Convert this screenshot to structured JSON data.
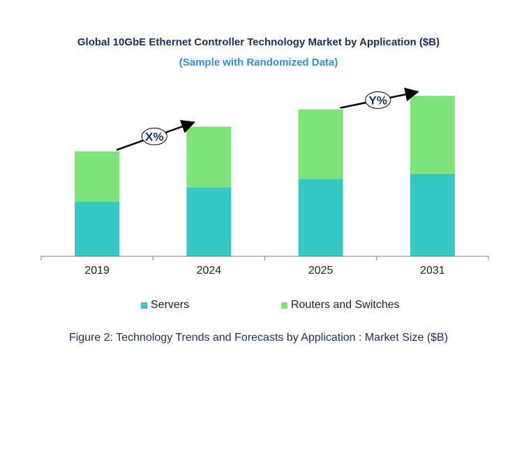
{
  "title": "Global 10GbE Ethernet Controller Technology Market by Application ($B)",
  "subtitle": "(Sample with Randomized Data)",
  "caption": "Figure 2: Technology  Trends  and Forecasts by Application : Market Size ($B)",
  "colors": {
    "servers": "#36c9c3",
    "routers": "#7ee37a",
    "axis": "#7f7f7f",
    "title": "#1f2d5c",
    "subtitle": "#2e8fd6"
  },
  "chart_data": {
    "type": "bar",
    "stacked": true,
    "categories": [
      "2019",
      "2024",
      "2025",
      "2031"
    ],
    "series": [
      {
        "name": "Servers",
        "values": [
          73,
          92,
          103,
          110
        ]
      },
      {
        "name": "Routers and Switches",
        "values": [
          67,
          81,
          93,
          104
        ]
      }
    ],
    "ylim": [
      0,
      230
    ],
    "y_axis_visible": false,
    "grid": false,
    "legend_position": "bottom",
    "annotations": [
      {
        "label": "X%",
        "from": "2019",
        "to": "2024"
      },
      {
        "label": "Y%",
        "from": "2025",
        "to": "2031"
      }
    ]
  }
}
